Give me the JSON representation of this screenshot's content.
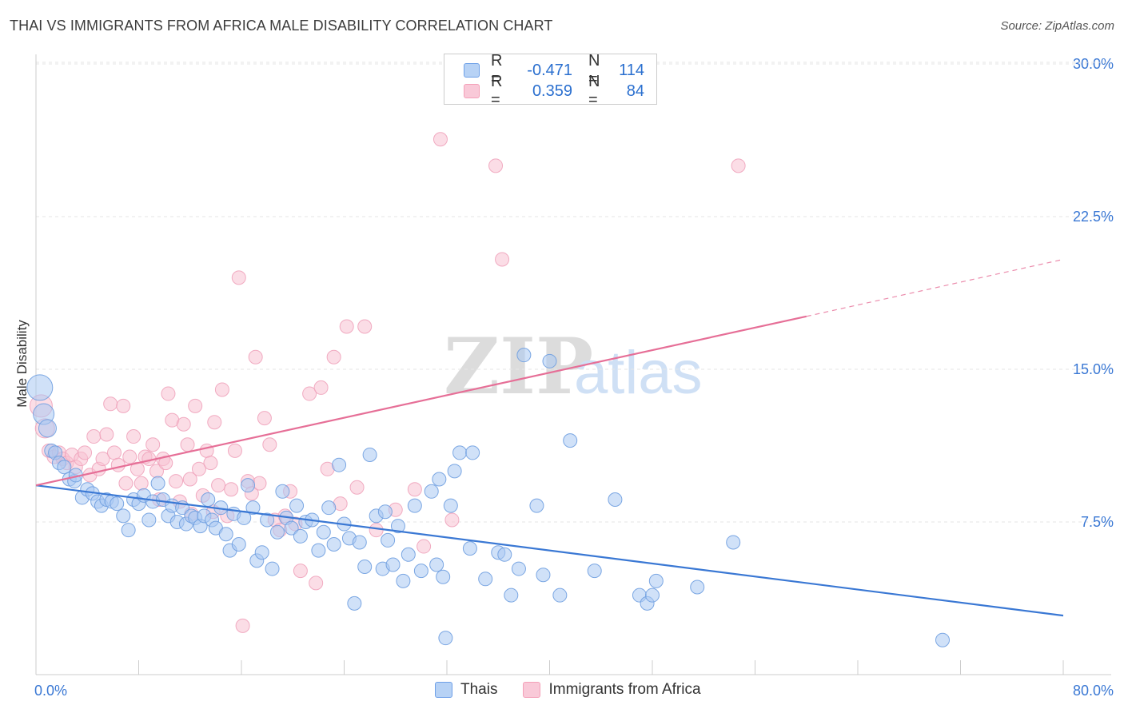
{
  "title": "THAI VS IMMIGRANTS FROM AFRICA MALE DISABILITY CORRELATION CHART",
  "source": "Source: ZipAtlas.com",
  "watermark": {
    "zip": "ZIP",
    "atlas": "atlas"
  },
  "legend": {
    "rows": [
      {
        "r_label": "R =",
        "r_value": "-0.471",
        "n_label": "N =",
        "n_value": "114",
        "color": "#6ea0e8"
      },
      {
        "r_label": "R =",
        "r_value": "0.359",
        "n_label": "N =",
        "n_value": "84",
        "color": "#f4a0b8"
      }
    ]
  },
  "bottom_legend": {
    "series1": "Thais",
    "series2": "Immigrants from Africa"
  },
  "colors": {
    "blue": "#3a78d4",
    "pink": "#e66f97",
    "blue_fill": "#a9c8f2",
    "pink_fill": "#f7c1d2",
    "axis_text": "#3a78d4"
  },
  "chart_data": {
    "type": "scatter",
    "xlabel": "",
    "ylabel": "Male Disability",
    "xlim": [
      0,
      80
    ],
    "ylim": [
      0,
      30
    ],
    "x_tick_labels": [
      "0.0%",
      "80.0%"
    ],
    "y_ticks": [
      7.5,
      15.0,
      22.5,
      30.0
    ],
    "y_tick_labels": [
      "7.5%",
      "15.0%",
      "22.5%",
      "30.0%"
    ],
    "grid": true,
    "legend_position": "top-center",
    "series": [
      {
        "name": "Thais",
        "color": "#3a78d4",
        "trend": {
          "x": [
            0,
            80
          ],
          "y": [
            9.3,
            2.9
          ]
        },
        "points": [
          [
            0.3,
            14.1
          ],
          [
            0.6,
            12.8
          ],
          [
            0.9,
            12.1
          ],
          [
            1.2,
            11.0
          ],
          [
            1.5,
            10.9
          ],
          [
            1.8,
            10.4
          ],
          [
            2.2,
            10.2
          ],
          [
            2.6,
            9.6
          ],
          [
            3.0,
            9.5
          ],
          [
            3.1,
            9.8
          ],
          [
            3.6,
            8.7
          ],
          [
            4.0,
            9.1
          ],
          [
            4.4,
            8.9
          ],
          [
            4.8,
            8.5
          ],
          [
            5.1,
            8.3
          ],
          [
            5.5,
            8.6
          ],
          [
            5.9,
            8.5
          ],
          [
            6.3,
            8.4
          ],
          [
            6.8,
            7.8
          ],
          [
            7.2,
            7.1
          ],
          [
            7.6,
            8.6
          ],
          [
            8.0,
            8.4
          ],
          [
            8.4,
            8.8
          ],
          [
            8.8,
            7.6
          ],
          [
            9.1,
            8.5
          ],
          [
            9.5,
            9.4
          ],
          [
            9.9,
            8.6
          ],
          [
            10.3,
            7.8
          ],
          [
            10.6,
            8.3
          ],
          [
            11.0,
            7.5
          ],
          [
            11.4,
            8.2
          ],
          [
            11.7,
            7.4
          ],
          [
            12.1,
            7.8
          ],
          [
            12.4,
            7.7
          ],
          [
            12.8,
            7.3
          ],
          [
            13.1,
            7.8
          ],
          [
            13.4,
            8.6
          ],
          [
            13.7,
            7.6
          ],
          [
            14.0,
            7.2
          ],
          [
            14.4,
            8.2
          ],
          [
            14.8,
            6.9
          ],
          [
            15.1,
            6.1
          ],
          [
            15.4,
            7.9
          ],
          [
            15.8,
            6.4
          ],
          [
            16.2,
            7.7
          ],
          [
            16.5,
            9.3
          ],
          [
            16.9,
            8.2
          ],
          [
            17.2,
            5.6
          ],
          [
            17.6,
            6.0
          ],
          [
            18.0,
            7.6
          ],
          [
            18.4,
            5.2
          ],
          [
            18.8,
            7.0
          ],
          [
            19.2,
            9.0
          ],
          [
            19.5,
            7.7
          ],
          [
            19.9,
            7.2
          ],
          [
            20.3,
            8.3
          ],
          [
            20.6,
            6.8
          ],
          [
            21.0,
            7.5
          ],
          [
            21.5,
            7.6
          ],
          [
            22.0,
            6.1
          ],
          [
            22.4,
            7.0
          ],
          [
            22.8,
            8.2
          ],
          [
            23.2,
            6.4
          ],
          [
            23.6,
            10.3
          ],
          [
            24.0,
            7.4
          ],
          [
            24.4,
            6.7
          ],
          [
            24.8,
            3.5
          ],
          [
            25.2,
            6.5
          ],
          [
            25.6,
            5.3
          ],
          [
            26.0,
            10.8
          ],
          [
            26.5,
            7.8
          ],
          [
            27.0,
            5.2
          ],
          [
            27.4,
            6.6
          ],
          [
            27.8,
            5.4
          ],
          [
            28.2,
            7.3
          ],
          [
            28.6,
            4.6
          ],
          [
            29.0,
            5.9
          ],
          [
            29.5,
            8.3
          ],
          [
            30.0,
            5.1
          ],
          [
            30.8,
            9.0
          ],
          [
            31.4,
            9.6
          ],
          [
            31.7,
            4.8
          ],
          [
            31.9,
            1.8
          ],
          [
            32.3,
            8.3
          ],
          [
            32.6,
            10.0
          ],
          [
            33.0,
            10.9
          ],
          [
            34.0,
            10.9
          ],
          [
            35.0,
            4.7
          ],
          [
            36.0,
            6.0
          ],
          [
            36.5,
            5.9
          ],
          [
            37.0,
            3.9
          ],
          [
            37.6,
            5.2
          ],
          [
            38.0,
            15.7
          ],
          [
            39.0,
            8.3
          ],
          [
            39.5,
            4.9
          ],
          [
            40.0,
            15.4
          ],
          [
            40.8,
            3.9
          ],
          [
            41.6,
            11.5
          ],
          [
            43.5,
            5.1
          ],
          [
            45.1,
            8.6
          ],
          [
            47.0,
            3.9
          ],
          [
            47.6,
            3.5
          ],
          [
            48.0,
            3.9
          ],
          [
            48.3,
            4.6
          ],
          [
            51.5,
            4.3
          ],
          [
            54.3,
            6.5
          ],
          [
            70.6,
            1.7
          ],
          [
            31.2,
            5.4
          ],
          [
            33.8,
            6.2
          ],
          [
            27.2,
            8.0
          ]
        ]
      },
      {
        "name": "Immigrants from Africa",
        "color": "#e66f97",
        "trend": {
          "x": [
            0,
            60
          ],
          "y": [
            9.3,
            17.6
          ]
        },
        "trend_dashed": {
          "x": [
            60,
            80
          ],
          "y": [
            17.6,
            20.4
          ]
        },
        "points": [
          [
            0.4,
            13.2
          ],
          [
            0.7,
            12.1
          ],
          [
            1.0,
            11.0
          ],
          [
            1.4,
            10.7
          ],
          [
            1.8,
            10.9
          ],
          [
            2.1,
            10.6
          ],
          [
            2.4,
            10.4
          ],
          [
            2.8,
            10.8
          ],
          [
            3.1,
            10.2
          ],
          [
            3.5,
            10.6
          ],
          [
            3.8,
            10.9
          ],
          [
            4.2,
            9.8
          ],
          [
            4.5,
            11.7
          ],
          [
            4.9,
            10.1
          ],
          [
            5.2,
            10.6
          ],
          [
            5.5,
            11.8
          ],
          [
            5.8,
            13.3
          ],
          [
            6.1,
            10.9
          ],
          [
            6.4,
            10.3
          ],
          [
            6.8,
            13.2
          ],
          [
            7.0,
            9.4
          ],
          [
            7.3,
            10.7
          ],
          [
            7.6,
            11.7
          ],
          [
            7.9,
            10.1
          ],
          [
            8.2,
            9.4
          ],
          [
            8.5,
            10.7
          ],
          [
            8.8,
            10.6
          ],
          [
            9.1,
            11.3
          ],
          [
            9.4,
            10.0
          ],
          [
            9.6,
            8.6
          ],
          [
            9.9,
            10.6
          ],
          [
            10.1,
            10.4
          ],
          [
            10.3,
            13.8
          ],
          [
            10.6,
            12.5
          ],
          [
            10.9,
            9.5
          ],
          [
            11.2,
            8.5
          ],
          [
            11.5,
            12.3
          ],
          [
            11.8,
            11.3
          ],
          [
            12.1,
            7.9
          ],
          [
            12.4,
            13.2
          ],
          [
            12.7,
            10.1
          ],
          [
            13.0,
            8.8
          ],
          [
            13.3,
            11.0
          ],
          [
            13.6,
            10.4
          ],
          [
            13.9,
            12.4
          ],
          [
            14.2,
            9.3
          ],
          [
            14.5,
            14.0
          ],
          [
            14.9,
            7.8
          ],
          [
            15.2,
            9.1
          ],
          [
            15.5,
            11.0
          ],
          [
            15.8,
            19.5
          ],
          [
            16.1,
            2.4
          ],
          [
            16.5,
            9.5
          ],
          [
            16.8,
            8.9
          ],
          [
            17.1,
            15.6
          ],
          [
            17.4,
            9.4
          ],
          [
            17.8,
            12.6
          ],
          [
            18.2,
            11.3
          ],
          [
            18.6,
            7.6
          ],
          [
            19.0,
            7.1
          ],
          [
            19.4,
            7.8
          ],
          [
            19.8,
            9.0
          ],
          [
            20.2,
            7.4
          ],
          [
            20.6,
            5.1
          ],
          [
            21.3,
            13.8
          ],
          [
            21.8,
            4.5
          ],
          [
            22.2,
            14.1
          ],
          [
            22.7,
            10.1
          ],
          [
            23.2,
            15.6
          ],
          [
            23.7,
            8.4
          ],
          [
            24.2,
            17.1
          ],
          [
            25.0,
            9.2
          ],
          [
            25.6,
            17.1
          ],
          [
            26.5,
            7.1
          ],
          [
            28.0,
            8.1
          ],
          [
            29.5,
            9.1
          ],
          [
            30.2,
            6.3
          ],
          [
            31.5,
            26.3
          ],
          [
            32.4,
            7.6
          ],
          [
            35.8,
            25.0
          ],
          [
            36.3,
            20.4
          ],
          [
            54.7,
            25.0
          ],
          [
            13.8,
            8.0
          ],
          [
            12.0,
            9.6
          ]
        ]
      }
    ]
  }
}
